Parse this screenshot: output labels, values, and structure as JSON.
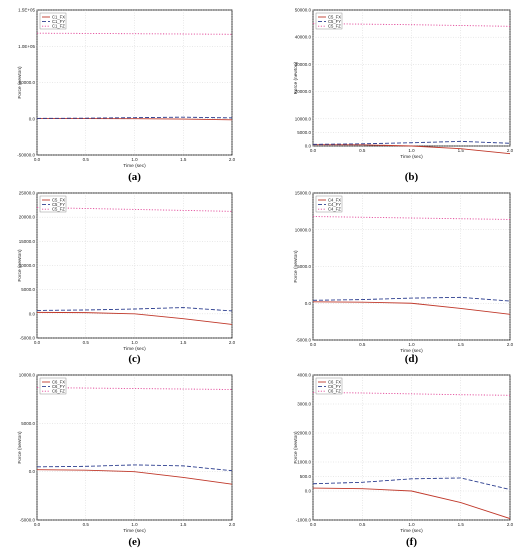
{
  "chart_data": [
    {
      "type": "line",
      "caption": "(a)",
      "xlabel": "Time (sec)",
      "ylabel": "Force (newton)",
      "xlim": [
        0,
        2
      ],
      "ylim": [
        -50000,
        150000
      ],
      "xticks": [
        0,
        0.5,
        1,
        1.5,
        2
      ],
      "xtick_labels": [
        "0.0",
        "0.5",
        "1.0",
        "1.5",
        "2.0"
      ],
      "yticks": [
        -50000,
        0,
        50000,
        100000,
        150000
      ],
      "ytick_labels": [
        "-50000.0",
        "0.0",
        "50000.0",
        "1.0E+05",
        "1.5E+05"
      ],
      "grid": true,
      "legend_position": "top-left",
      "series": [
        {
          "name": "C1_FX",
          "color": "#c0392b",
          "dash": "solid",
          "x": [
            0,
            0.5,
            1,
            1.5,
            2
          ],
          "y": [
            300,
            250,
            100,
            -400,
            -1500
          ]
        },
        {
          "name": "C1_FY",
          "color": "#2c3e8f",
          "dash": "dashed",
          "x": [
            0,
            0.5,
            1,
            1.5,
            2
          ],
          "y": [
            500,
            800,
            1500,
            2200,
            1200
          ]
        },
        {
          "name": "C1_FZ",
          "color": "#e24a9a",
          "dash": "dotted",
          "x": [
            0,
            0.5,
            1,
            1.5,
            2
          ],
          "y": [
            118000,
            117700,
            117300,
            116900,
            116500
          ]
        }
      ]
    },
    {
      "type": "line",
      "caption": "(b)",
      "xlabel": "Time (sec)",
      "ylabel": "Force (newton)",
      "xlim": [
        0,
        2
      ],
      "ylim": [
        0,
        50000
      ],
      "xticks": [
        0,
        0.5,
        1,
        1.5,
        2
      ],
      "xtick_labels": [
        "0.0",
        "0.5",
        "1.0",
        "1.5",
        "2.0"
      ],
      "yticks": [
        0,
        5000,
        10000,
        20000,
        30000,
        40000,
        50000
      ],
      "ytick_labels": [
        "0.0",
        "5000.0",
        "10000.0",
        "20000.0",
        "30000.0",
        "40000.0",
        "50000.0"
      ],
      "grid": true,
      "legend_position": "top-left",
      "series": [
        {
          "name": "C5_FX",
          "color": "#c0392b",
          "dash": "solid",
          "x": [
            0,
            0.5,
            1,
            1.5,
            2
          ],
          "y": [
            500,
            450,
            0,
            -1000,
            -2800
          ]
        },
        {
          "name": "C5_FY",
          "color": "#2c3e8f",
          "dash": "dashed",
          "x": [
            0,
            0.5,
            1,
            1.5,
            2
          ],
          "y": [
            600,
            800,
            1200,
            1700,
            1000
          ]
        },
        {
          "name": "C5_FZ",
          "color": "#e24a9a",
          "dash": "dotted",
          "x": [
            0,
            0.5,
            1,
            1.5,
            2
          ],
          "y": [
            45000,
            44800,
            44600,
            44300,
            44000
          ]
        }
      ]
    },
    {
      "type": "line",
      "caption": "(c)",
      "xlabel": "Time (sec)",
      "ylabel": "Force (newton)",
      "xlim": [
        0,
        2
      ],
      "ylim": [
        -5000,
        25000
      ],
      "xticks": [
        0,
        0.5,
        1,
        1.5,
        2
      ],
      "xtick_labels": [
        "0.0",
        "0.5",
        "1.0",
        "1.5",
        "2.0"
      ],
      "yticks": [
        -5000,
        0,
        5000,
        10000,
        15000,
        20000,
        25000
      ],
      "ytick_labels": [
        "-5000.0",
        "0.0",
        "5000.0",
        "10000.0",
        "15000.0",
        "20000.0",
        "25000.0"
      ],
      "grid": true,
      "legend_position": "top-left",
      "series": [
        {
          "name": "C5_FX",
          "color": "#c0392b",
          "dash": "solid",
          "x": [
            0,
            0.5,
            1,
            1.5,
            2
          ],
          "y": [
            300,
            250,
            0,
            -1000,
            -2200
          ]
        },
        {
          "name": "C5_FY",
          "color": "#2c3e8f",
          "dash": "dashed",
          "x": [
            0,
            0.5,
            1,
            1.5,
            2
          ],
          "y": [
            700,
            800,
            1000,
            1300,
            600
          ]
        },
        {
          "name": "C5_FZ",
          "color": "#e24a9a",
          "dash": "dotted",
          "x": [
            0,
            0.5,
            1,
            1.5,
            2
          ],
          "y": [
            22000,
            21800,
            21600,
            21400,
            21200
          ]
        }
      ]
    },
    {
      "type": "line",
      "caption": "(d)",
      "xlabel": "Time (sec)",
      "ylabel": "Force (newton)",
      "xlim": [
        0,
        2
      ],
      "ylim": [
        -5000,
        15000
      ],
      "xticks": [
        0,
        0.5,
        1,
        1.5,
        2
      ],
      "xtick_labels": [
        "0.0",
        "0.5",
        "1.0",
        "1.5",
        "2.0"
      ],
      "yticks": [
        -5000,
        0,
        5000,
        10000,
        15000
      ],
      "ytick_labels": [
        "-5000.0",
        "0.0",
        "5000.0",
        "10000.0",
        "15000.0"
      ],
      "grid": true,
      "legend_position": "top-left",
      "series": [
        {
          "name": "C4_FX",
          "color": "#c0392b",
          "dash": "solid",
          "x": [
            0,
            0.5,
            1,
            1.5,
            2
          ],
          "y": [
            200,
            150,
            0,
            -700,
            -1500
          ]
        },
        {
          "name": "C4_FY",
          "color": "#2c3e8f",
          "dash": "dashed",
          "x": [
            0,
            0.5,
            1,
            1.5,
            2
          ],
          "y": [
            400,
            500,
            700,
            800,
            300
          ]
        },
        {
          "name": "C4_FZ",
          "color": "#e24a9a",
          "dash": "dotted",
          "x": [
            0,
            0.5,
            1,
            1.5,
            2
          ],
          "y": [
            11800,
            11700,
            11600,
            11500,
            11400
          ]
        }
      ]
    },
    {
      "type": "line",
      "caption": "(e)",
      "xlabel": "Time (sec)",
      "ylabel": "Force (newton)",
      "xlim": [
        0,
        2
      ],
      "ylim": [
        -5000,
        10000
      ],
      "xticks": [
        0,
        0.5,
        1,
        1.5,
        2
      ],
      "xtick_labels": [
        "0.0",
        "0.5",
        "1.0",
        "1.5",
        "2.0"
      ],
      "yticks": [
        -5000,
        0,
        5000,
        10000
      ],
      "ytick_labels": [
        "-5000.0",
        "0.0",
        "5000.0",
        "10000.0"
      ],
      "grid": true,
      "legend_position": "top-left",
      "series": [
        {
          "name": "C6_FX",
          "color": "#c0392b",
          "dash": "solid",
          "x": [
            0,
            0.5,
            1,
            1.5,
            2
          ],
          "y": [
            200,
            150,
            0,
            -600,
            -1300
          ]
        },
        {
          "name": "C6_FY",
          "color": "#2c3e8f",
          "dash": "dashed",
          "x": [
            0,
            0.5,
            1,
            1.5,
            2
          ],
          "y": [
            500,
            550,
            700,
            600,
            100
          ]
        },
        {
          "name": "C6_FZ",
          "color": "#e24a9a",
          "dash": "dotted",
          "x": [
            0,
            0.5,
            1,
            1.5,
            2
          ],
          "y": [
            8700,
            8650,
            8600,
            8550,
            8500
          ]
        }
      ]
    },
    {
      "type": "line",
      "caption": "(f)",
      "xlabel": "Time (sec)",
      "ylabel": "Force (newton)",
      "xlim": [
        0,
        2
      ],
      "ylim": [
        -1000,
        4000
      ],
      "xticks": [
        0,
        0.5,
        1,
        1.5,
        2
      ],
      "xtick_labels": [
        "0.0",
        "0.5",
        "1.0",
        "1.5",
        "2.0"
      ],
      "yticks": [
        -1000,
        0,
        500,
        1000,
        2000,
        3000,
        4000
      ],
      "ytick_labels": [
        "-1000.0",
        "0.0",
        "500.0",
        "1000.0",
        "2000.0",
        "3000.0",
        "4000.0"
      ],
      "grid": true,
      "legend_position": "top-left",
      "series": [
        {
          "name": "C6_FX",
          "color": "#c0392b",
          "dash": "solid",
          "x": [
            0,
            0.5,
            1,
            1.5,
            2
          ],
          "y": [
            100,
            80,
            0,
            -400,
            -950
          ]
        },
        {
          "name": "C6_FY",
          "color": "#2c3e8f",
          "dash": "dashed",
          "x": [
            0,
            0.5,
            1,
            1.5,
            2
          ],
          "y": [
            250,
            300,
            420,
            450,
            50
          ]
        },
        {
          "name": "C6_FZ",
          "color": "#e24a9a",
          "dash": "dotted",
          "x": [
            0,
            0.5,
            1,
            1.5,
            2
          ],
          "y": [
            3400,
            3380,
            3350,
            3320,
            3300
          ]
        }
      ]
    }
  ]
}
